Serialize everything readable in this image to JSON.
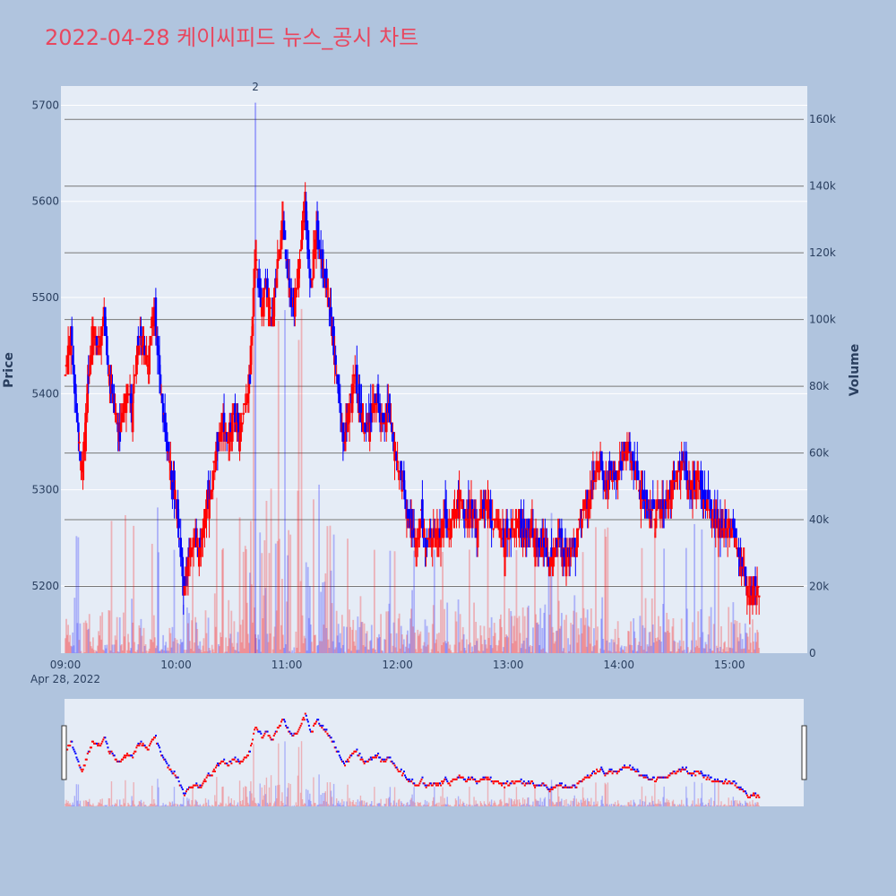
{
  "title": "2022-04-28 케이씨피드 뉴스_공시 차트",
  "chart_data": {
    "type": "candlestick",
    "title": "2022-04-28 케이씨피드 뉴스_공시 차트",
    "xlabel": "",
    "date_label": "Apr 28, 2022",
    "ylabel": "Price",
    "y2label": "Volume",
    "ylim": [
      5130,
      5720
    ],
    "y2lim": [
      0,
      170000
    ],
    "xlim": [
      "09:00",
      "15:30"
    ],
    "x_ticks": [
      "09:00",
      "10:00",
      "11:00",
      "12:00",
      "13:00",
      "14:00",
      "15:00"
    ],
    "y_ticks": [
      5200,
      5300,
      5400,
      5500,
      5600,
      5700
    ],
    "y2_ticks": [
      0,
      20000,
      40000,
      60000,
      80000,
      100000,
      120000,
      140000,
      160000
    ],
    "y2_tick_labels": [
      "0",
      "20k",
      "40k",
      "60k",
      "80k",
      "100k",
      "120k",
      "140k",
      "160k"
    ],
    "annotation": {
      "text": "2",
      "time": "10:43"
    },
    "up_color": "#ff0000",
    "down_color": "#0000ff",
    "grid": true,
    "rangeslider": true,
    "price_path": [
      [
        "09:00",
        5420
      ],
      [
        "09:03",
        5460
      ],
      [
        "09:06",
        5380
      ],
      [
        "09:09",
        5320
      ],
      [
        "09:12",
        5400
      ],
      [
        "09:15",
        5470
      ],
      [
        "09:18",
        5450
      ],
      [
        "09:21",
        5480
      ],
      [
        "09:24",
        5420
      ],
      [
        "09:27",
        5380
      ],
      [
        "09:30",
        5360
      ],
      [
        "09:33",
        5410
      ],
      [
        "09:36",
        5380
      ],
      [
        "09:39",
        5450
      ],
      [
        "09:42",
        5460
      ],
      [
        "09:45",
        5430
      ],
      [
        "09:48",
        5490
      ],
      [
        "09:51",
        5420
      ],
      [
        "09:54",
        5360
      ],
      [
        "09:57",
        5320
      ],
      [
        "10:00",
        5290
      ],
      [
        "10:02",
        5240
      ],
      [
        "10:04",
        5200
      ],
      [
        "10:07",
        5230
      ],
      [
        "10:10",
        5260
      ],
      [
        "10:13",
        5230
      ],
      [
        "10:16",
        5280
      ],
      [
        "10:19",
        5300
      ],
      [
        "10:22",
        5340
      ],
      [
        "10:25",
        5370
      ],
      [
        "10:28",
        5350
      ],
      [
        "10:31",
        5380
      ],
      [
        "10:34",
        5360
      ],
      [
        "10:37",
        5390
      ],
      [
        "10:40",
        5420
      ],
      [
        "10:43",
        5540
      ],
      [
        "10:46",
        5490
      ],
      [
        "10:49",
        5510
      ],
      [
        "10:52",
        5470
      ],
      [
        "10:55",
        5540
      ],
      [
        "10:58",
        5580
      ],
      [
        "11:01",
        5510
      ],
      [
        "11:04",
        5490
      ],
      [
        "11:07",
        5540
      ],
      [
        "11:10",
        5600
      ],
      [
        "11:13",
        5500
      ],
      [
        "11:16",
        5580
      ],
      [
        "11:19",
        5530
      ],
      [
        "11:22",
        5510
      ],
      [
        "11:25",
        5460
      ],
      [
        "11:28",
        5400
      ],
      [
        "11:31",
        5340
      ],
      [
        "11:34",
        5390
      ],
      [
        "11:37",
        5420
      ],
      [
        "11:40",
        5380
      ],
      [
        "11:43",
        5360
      ],
      [
        "11:46",
        5380
      ],
      [
        "11:49",
        5390
      ],
      [
        "11:52",
        5370
      ],
      [
        "11:55",
        5380
      ],
      [
        "11:58",
        5350
      ],
      [
        "12:01",
        5320
      ],
      [
        "12:04",
        5290
      ],
      [
        "12:07",
        5260
      ],
      [
        "12:10",
        5250
      ],
      [
        "12:13",
        5270
      ],
      [
        "12:16",
        5240
      ],
      [
        "12:19",
        5260
      ],
      [
        "12:22",
        5250
      ],
      [
        "12:25",
        5270
      ],
      [
        "12:28",
        5260
      ],
      [
        "12:31",
        5280
      ],
      [
        "12:34",
        5290
      ],
      [
        "12:37",
        5270
      ],
      [
        "12:40",
        5280
      ],
      [
        "12:43",
        5260
      ],
      [
        "12:46",
        5270
      ],
      [
        "12:49",
        5280
      ],
      [
        "12:52",
        5270
      ],
      [
        "12:55",
        5260
      ],
      [
        "12:58",
        5250
      ],
      [
        "13:01",
        5260
      ],
      [
        "13:04",
        5270
      ],
      [
        "13:07",
        5260
      ],
      [
        "13:10",
        5250
      ],
      [
        "13:13",
        5260
      ],
      [
        "13:16",
        5240
      ],
      [
        "13:19",
        5250
      ],
      [
        "13:22",
        5230
      ],
      [
        "13:25",
        5240
      ],
      [
        "13:28",
        5250
      ],
      [
        "13:31",
        5230
      ],
      [
        "13:34",
        5240
      ],
      [
        "13:37",
        5240
      ],
      [
        "13:40",
        5280
      ],
      [
        "13:43",
        5290
      ],
      [
        "13:46",
        5310
      ],
      [
        "13:49",
        5330
      ],
      [
        "13:52",
        5300
      ],
      [
        "13:55",
        5320
      ],
      [
        "13:58",
        5310
      ],
      [
        "14:01",
        5330
      ],
      [
        "14:04",
        5340
      ],
      [
        "14:07",
        5330
      ],
      [
        "14:10",
        5310
      ],
      [
        "14:13",
        5290
      ],
      [
        "14:16",
        5280
      ],
      [
        "14:19",
        5270
      ],
      [
        "14:22",
        5290
      ],
      [
        "14:25",
        5280
      ],
      [
        "14:28",
        5300
      ],
      [
        "14:31",
        5320
      ],
      [
        "14:34",
        5330
      ],
      [
        "14:37",
        5310
      ],
      [
        "14:40",
        5300
      ],
      [
        "14:43",
        5310
      ],
      [
        "14:46",
        5290
      ],
      [
        "14:49",
        5280
      ],
      [
        "14:52",
        5270
      ],
      [
        "14:55",
        5260
      ],
      [
        "14:58",
        5270
      ],
      [
        "15:01",
        5260
      ],
      [
        "15:04",
        5250
      ],
      [
        "15:07",
        5220
      ],
      [
        "15:10",
        5190
      ],
      [
        "15:13",
        5200
      ],
      [
        "15:16",
        5200
      ]
    ]
  }
}
